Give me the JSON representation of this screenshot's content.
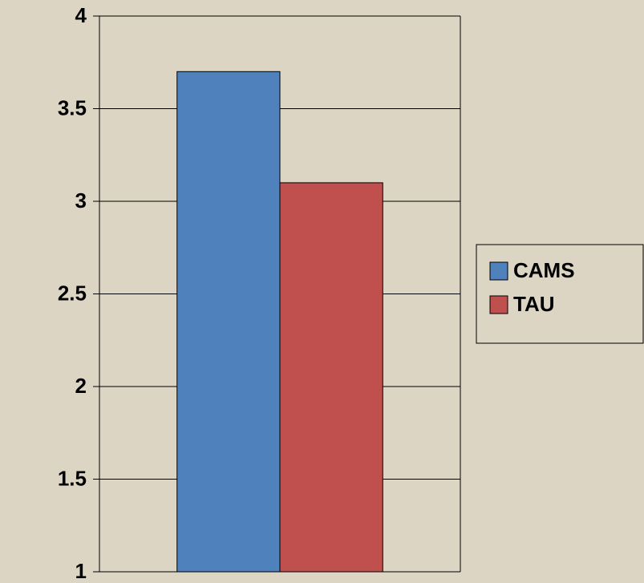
{
  "chart_data": {
    "type": "bar",
    "categories": [
      null
    ],
    "series": [
      {
        "name": "CAMS",
        "color": "#4f81bd",
        "values": [
          3.7
        ]
      },
      {
        "name": "TAU",
        "color": "#c0504d",
        "values": [
          3.1
        ]
      }
    ],
    "ylim": [
      1,
      4
    ],
    "yticks": [
      1,
      1.5,
      2,
      2.5,
      3,
      3.5,
      4
    ],
    "grid": true,
    "legend": "right"
  }
}
